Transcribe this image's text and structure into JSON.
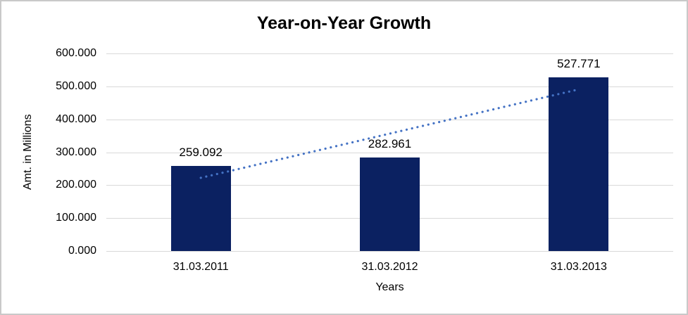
{
  "window": {
    "background": "#ffffff",
    "border_color": "#c9c9c9"
  },
  "chart_data": {
    "type": "bar",
    "title": "Year-on-Year Growth",
    "categories": [
      "31.03.2011",
      "31.03.2012",
      "31.03.2013"
    ],
    "series": [
      {
        "name": "Amt. in Millions",
        "values": [
          259.092,
          282.961,
          527.771
        ]
      }
    ],
    "data_labels": [
      "259.092",
      "282.961",
      "527.771"
    ],
    "xlabel": "Years",
    "ylabel": "Amt. in Millions",
    "ylim": [
      0,
      600
    ],
    "ytick_step": 100,
    "ytick_labels": [
      "0.000",
      "100.000",
      "200.000",
      "300.000",
      "400.000",
      "500.000",
      "600.000"
    ],
    "grid": true,
    "legend": "none",
    "bar_color": "#0b2161",
    "gridline_color": "#d9d9d9",
    "text_color": "#000000",
    "trendline": {
      "type": "linear",
      "style": "dotted",
      "color": "#4472c4",
      "start_value": 222.3,
      "end_value": 490.9
    }
  }
}
